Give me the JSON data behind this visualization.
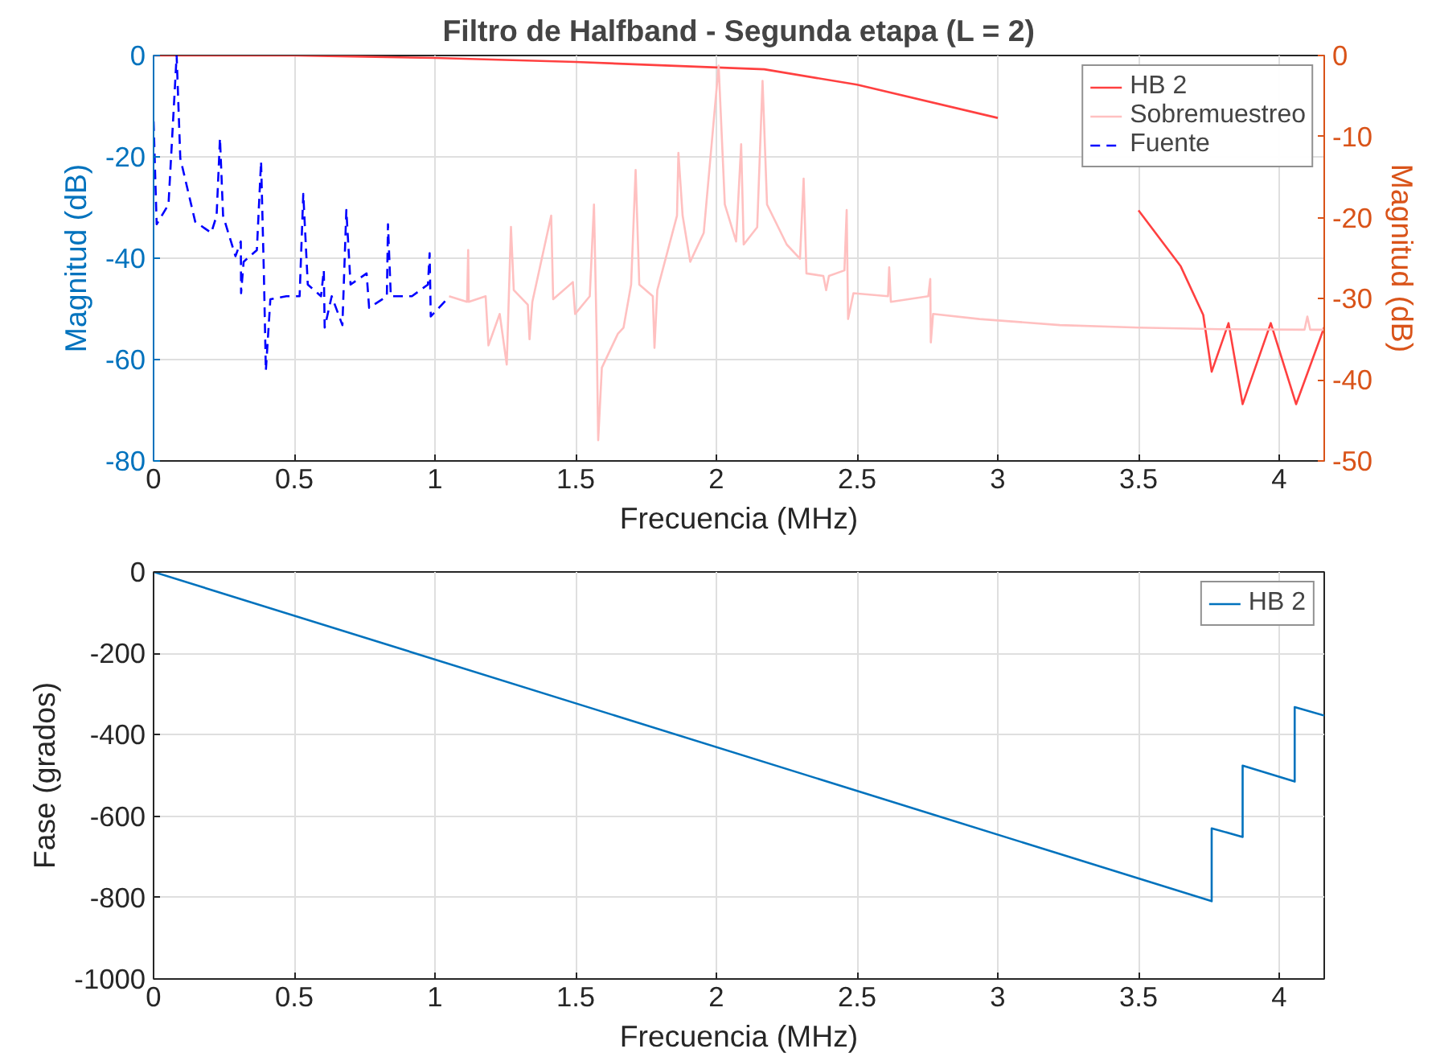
{
  "chart_data": [
    {
      "type": "line",
      "title": "Filtro de Halfband - Segunda etapa (L = 2)",
      "xlabel": "Frecuencia (MHz)",
      "ylabel": "Magnitud (dB)",
      "y2label": "Magnitud (dB)",
      "xlim": [
        0,
        4.16
      ],
      "xticks": [
        0,
        0.5,
        1,
        1.5,
        2,
        2.5,
        3,
        3.5,
        4
      ],
      "ylim": [
        -80,
        0
      ],
      "yticks": [
        -80,
        -60,
        -40,
        -20,
        0
      ],
      "y2lim": [
        -50,
        0
      ],
      "y2ticks": [
        -50,
        -40,
        -30,
        -20,
        -10,
        0
      ],
      "grid": true,
      "legend": "top right",
      "series": [
        {
          "name": "HB 2",
          "color": "#ff4040",
          "axis": "y2",
          "line_style": "solid",
          "x": [
            0,
            0.5,
            1,
            1.5,
            2.17,
            2.5,
            3,
            3.07,
            3.45,
            3.5,
            3.65,
            3.73,
            3.76,
            3.82,
            3.87,
            3.97,
            4.06,
            4.16
          ],
          "values": [
            0,
            0,
            -0.3,
            -0.8,
            -1.7,
            -3.6,
            -7.7,
            null,
            null,
            -19.1,
            -26,
            -32,
            -39,
            -33,
            -43,
            -33,
            -43,
            -33.5
          ]
        },
        {
          "name": "Sobremuestreo",
          "color": "#ffc0c0",
          "axis": "y",
          "line_style": "solid",
          "x": [
            1.05,
            1.114,
            1.118,
            1.12,
            1.18,
            1.19,
            1.23,
            1.255,
            1.27,
            1.28,
            1.33,
            1.336,
            1.346,
            1.413,
            1.42,
            1.49,
            1.498,
            1.55,
            1.565,
            1.575,
            1.58,
            1.593,
            1.65,
            1.67,
            1.697,
            1.713,
            1.726,
            1.774,
            1.78,
            1.79,
            1.86,
            1.865,
            1.88,
            1.907,
            1.955,
            2.008,
            2.03,
            2.07,
            2.088,
            2.097,
            2.145,
            2.164,
            2.18,
            2.25,
            2.297,
            2.31,
            2.32,
            2.38,
            2.39,
            2.4,
            2.455,
            2.463,
            2.468,
            2.487,
            2.61,
            2.614,
            2.62,
            2.753,
            2.76,
            2.762,
            2.77,
            2.935,
            3.22,
            3.5,
            3.79,
            4.09,
            4.1,
            4.11,
            4.16
          ],
          "values": [
            -47.5,
            -48.6,
            -38.4,
            -48.6,
            -47.5,
            -57.2,
            -51,
            -61,
            -33.8,
            -46.3,
            -49.2,
            -56,
            -48.6,
            -31.6,
            -48.1,
            -44.7,
            -51,
            -47.5,
            -29.4,
            -56.6,
            -75.9,
            -61.6,
            -54.9,
            -53.7,
            -45.2,
            -22.6,
            -45.2,
            -47.5,
            -57.7,
            -46.3,
            -31.6,
            -19.2,
            -31.6,
            -40.7,
            -35,
            -2,
            -29.4,
            -36.7,
            -17.5,
            -37.3,
            -33.9,
            -5,
            -29.4,
            -37.3,
            -40.1,
            -24.3,
            -43,
            -43.5,
            -46.3,
            -43.5,
            -42.4,
            -30.5,
            -52,
            -46.9,
            -47.5,
            -41.8,
            -48.6,
            -47.5,
            -44.1,
            -56.6,
            -51,
            -52,
            -53.2,
            -53.7,
            -54,
            -54.1,
            -51.5,
            -54.1,
            -54.1
          ]
        },
        {
          "name": "Fuente",
          "color": "#0000ff",
          "axis": "y",
          "line_style": "dashed",
          "x": [
            0,
            0.011,
            0.053,
            0.082,
            0.095,
            0.148,
            0.205,
            0.224,
            0.236,
            0.247,
            0.291,
            0.31,
            0.311,
            0.32,
            0.367,
            0.382,
            0.392,
            0.399,
            0.415,
            0.472,
            0.519,
            0.532,
            0.548,
            0.595,
            0.605,
            0.608,
            0.633,
            0.671,
            0.685,
            0.7,
            0.757,
            0.766,
            0.829,
            0.833,
            0.843,
            0.918,
            0.975,
            0.981,
            0.985,
            1.042
          ],
          "values": [
            -13,
            -33.3,
            -29.4,
            0,
            -20.3,
            -32.8,
            -35,
            -31.6,
            -16.3,
            -31.6,
            -39.6,
            -36.7,
            -46.9,
            -40.7,
            -38.4,
            -20.9,
            -43,
            -62.2,
            -48.1,
            -47.5,
            -47.5,
            -27.3,
            -45.2,
            -47.5,
            -42.4,
            -53.7,
            -47.5,
            -53.2,
            -30.5,
            -45.2,
            -43,
            -49.8,
            -47.5,
            -33.3,
            -47.5,
            -47.5,
            -45.2,
            -39,
            -51.5,
            -48.1
          ]
        }
      ]
    },
    {
      "type": "line",
      "xlabel": "Frecuencia (MHz)",
      "ylabel": "Fase (grados)",
      "xlim": [
        0,
        4.16
      ],
      "xticks": [
        0,
        0.5,
        1,
        1.5,
        2,
        2.5,
        3,
        3.5,
        4
      ],
      "ylim": [
        -1000,
        0
      ],
      "yticks": [
        -1000,
        -800,
        -600,
        -400,
        -200,
        0
      ],
      "grid": true,
      "legend": "top right",
      "series": [
        {
          "name": "HB 2",
          "color": "#0072bd",
          "line_style": "solid",
          "x": [
            0,
            3.76,
            3.76,
            3.87,
            3.87,
            4.055,
            4.055,
            4.16
          ],
          "values": [
            0,
            -809,
            -630,
            -651,
            -476,
            -515,
            -332,
            -353
          ]
        }
      ]
    }
  ]
}
